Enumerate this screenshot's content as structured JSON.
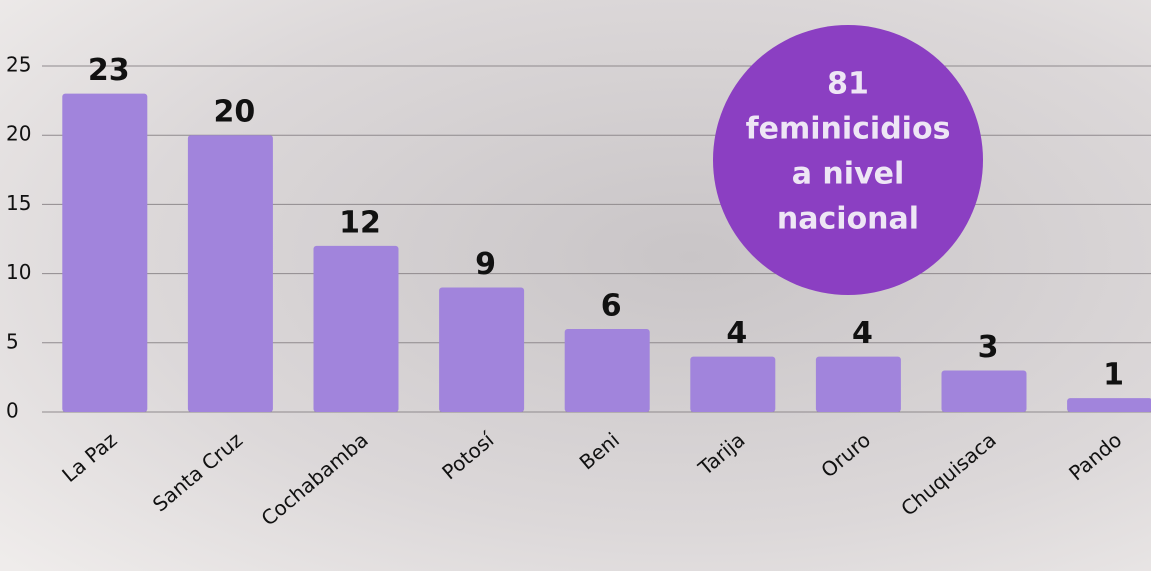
{
  "chart_data": {
    "type": "bar",
    "categories": [
      "La Paz",
      "Santa Cruz",
      "Cochabamba",
      "Potosí",
      "Beni",
      "Tarija",
      "Oruro",
      "Chuquisaca",
      "Pando"
    ],
    "values": [
      23,
      20,
      12,
      9,
      6,
      4,
      4,
      3,
      1
    ],
    "color": "#a184dc",
    "ylim": [
      0,
      25
    ],
    "yticks": [
      0,
      5,
      10,
      15,
      20,
      25
    ],
    "grid": true,
    "annotation": [
      "81",
      "feminicidios",
      "a nivel",
      "nacional"
    ],
    "annotation_color": "#8b3fc2"
  }
}
